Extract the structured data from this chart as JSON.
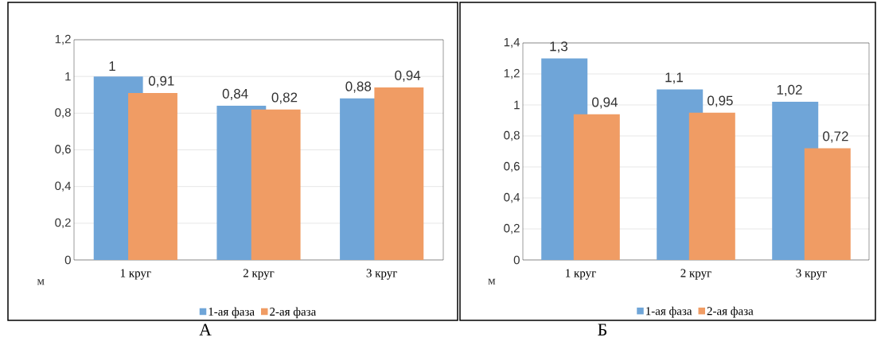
{
  "chart_data": [
    {
      "type": "bar",
      "ylabel": "м",
      "categories": [
        "1 круг",
        "2 круг",
        "3 круг"
      ],
      "series": [
        {
          "name": "1-ая фаза",
          "color": "#6fa5d8",
          "values": [
            1,
            0.84,
            0.88
          ],
          "value_labels": [
            "1",
            "0,84",
            "0,88"
          ]
        },
        {
          "name": "2-ая фаза",
          "color": "#f09c64",
          "values": [
            0.91,
            0.82,
            0.94
          ],
          "value_labels": [
            "0,91",
            "0,82",
            "0,94"
          ]
        }
      ],
      "ylim": [
        0,
        1.2
      ],
      "yticks": [
        0,
        {
          "value": 0.2,
          "label": "0,2"
        },
        {
          "value": 0.4,
          "label": "0,4"
        },
        {
          "value": 0.6,
          "label": "0,6"
        },
        {
          "value": 0.8,
          "label": "0,8"
        },
        1,
        {
          "value": 1.2,
          "label": "1,2"
        }
      ],
      "grid": "y",
      "legend": "bottom",
      "annotations": [
        "А"
      ]
    },
    {
      "type": "bar",
      "ylabel": "м",
      "categories": [
        "1 круг",
        "2 круг",
        "3 круг"
      ],
      "series": [
        {
          "name": "1-ая фаза",
          "color": "#6fa5d8",
          "values": [
            1.3,
            1.1,
            1.02
          ],
          "value_labels": [
            "1,3",
            "1,1",
            "1,02"
          ]
        },
        {
          "name": "2-ая фаза",
          "color": "#f09c64",
          "values": [
            0.94,
            0.95,
            0.72
          ],
          "value_labels": [
            "0,94",
            "0,95",
            "0,72"
          ]
        }
      ],
      "ylim": [
        0,
        1.4
      ],
      "yticks": [
        0,
        {
          "value": 0.2,
          "label": "0,2"
        },
        {
          "value": 0.4,
          "label": "0,4"
        },
        {
          "value": 0.6,
          "label": "0,6"
        },
        {
          "value": 0.8,
          "label": "0,8"
        },
        1,
        {
          "value": 1.2,
          "label": "1,2"
        },
        {
          "value": 1.4,
          "label": "1,4"
        }
      ],
      "grid": "y",
      "legend": "bottom",
      "annotations": [
        "Б"
      ]
    }
  ]
}
